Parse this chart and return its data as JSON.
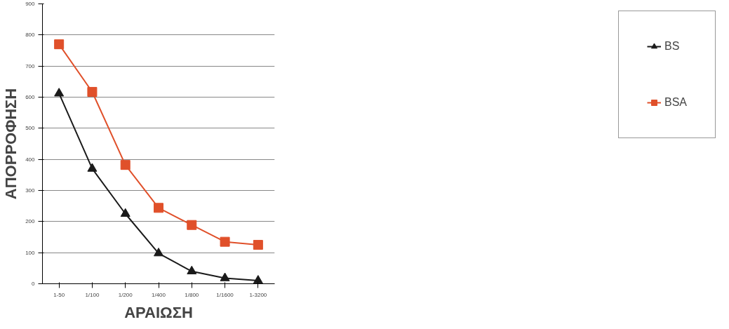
{
  "chart_data": {
    "type": "line",
    "xlabel": "ΑΡΑΙΩΣΗ",
    "ylabel": "ΑΠΟΡΡΟΦΗΣΗ",
    "categories": [
      "1-50",
      "1/100",
      "1/200",
      "1/400",
      "1/800",
      "1/1600",
      "1-3200"
    ],
    "series": [
      {
        "name": "BS",
        "color": "#1a1a1a",
        "marker": "triangle",
        "values": [
          612,
          370,
          225,
          98,
          40,
          18,
          10
        ]
      },
      {
        "name": "BSA",
        "color": "#e0502a",
        "marker": "square",
        "values": [
          770,
          617,
          382,
          244,
          189,
          135,
          125
        ]
      }
    ],
    "ylim": [
      0,
      900
    ],
    "yticks": [
      0,
      100,
      200,
      300,
      400,
      500,
      600,
      700,
      800,
      900
    ],
    "grid": "y",
    "legend": "right"
  }
}
